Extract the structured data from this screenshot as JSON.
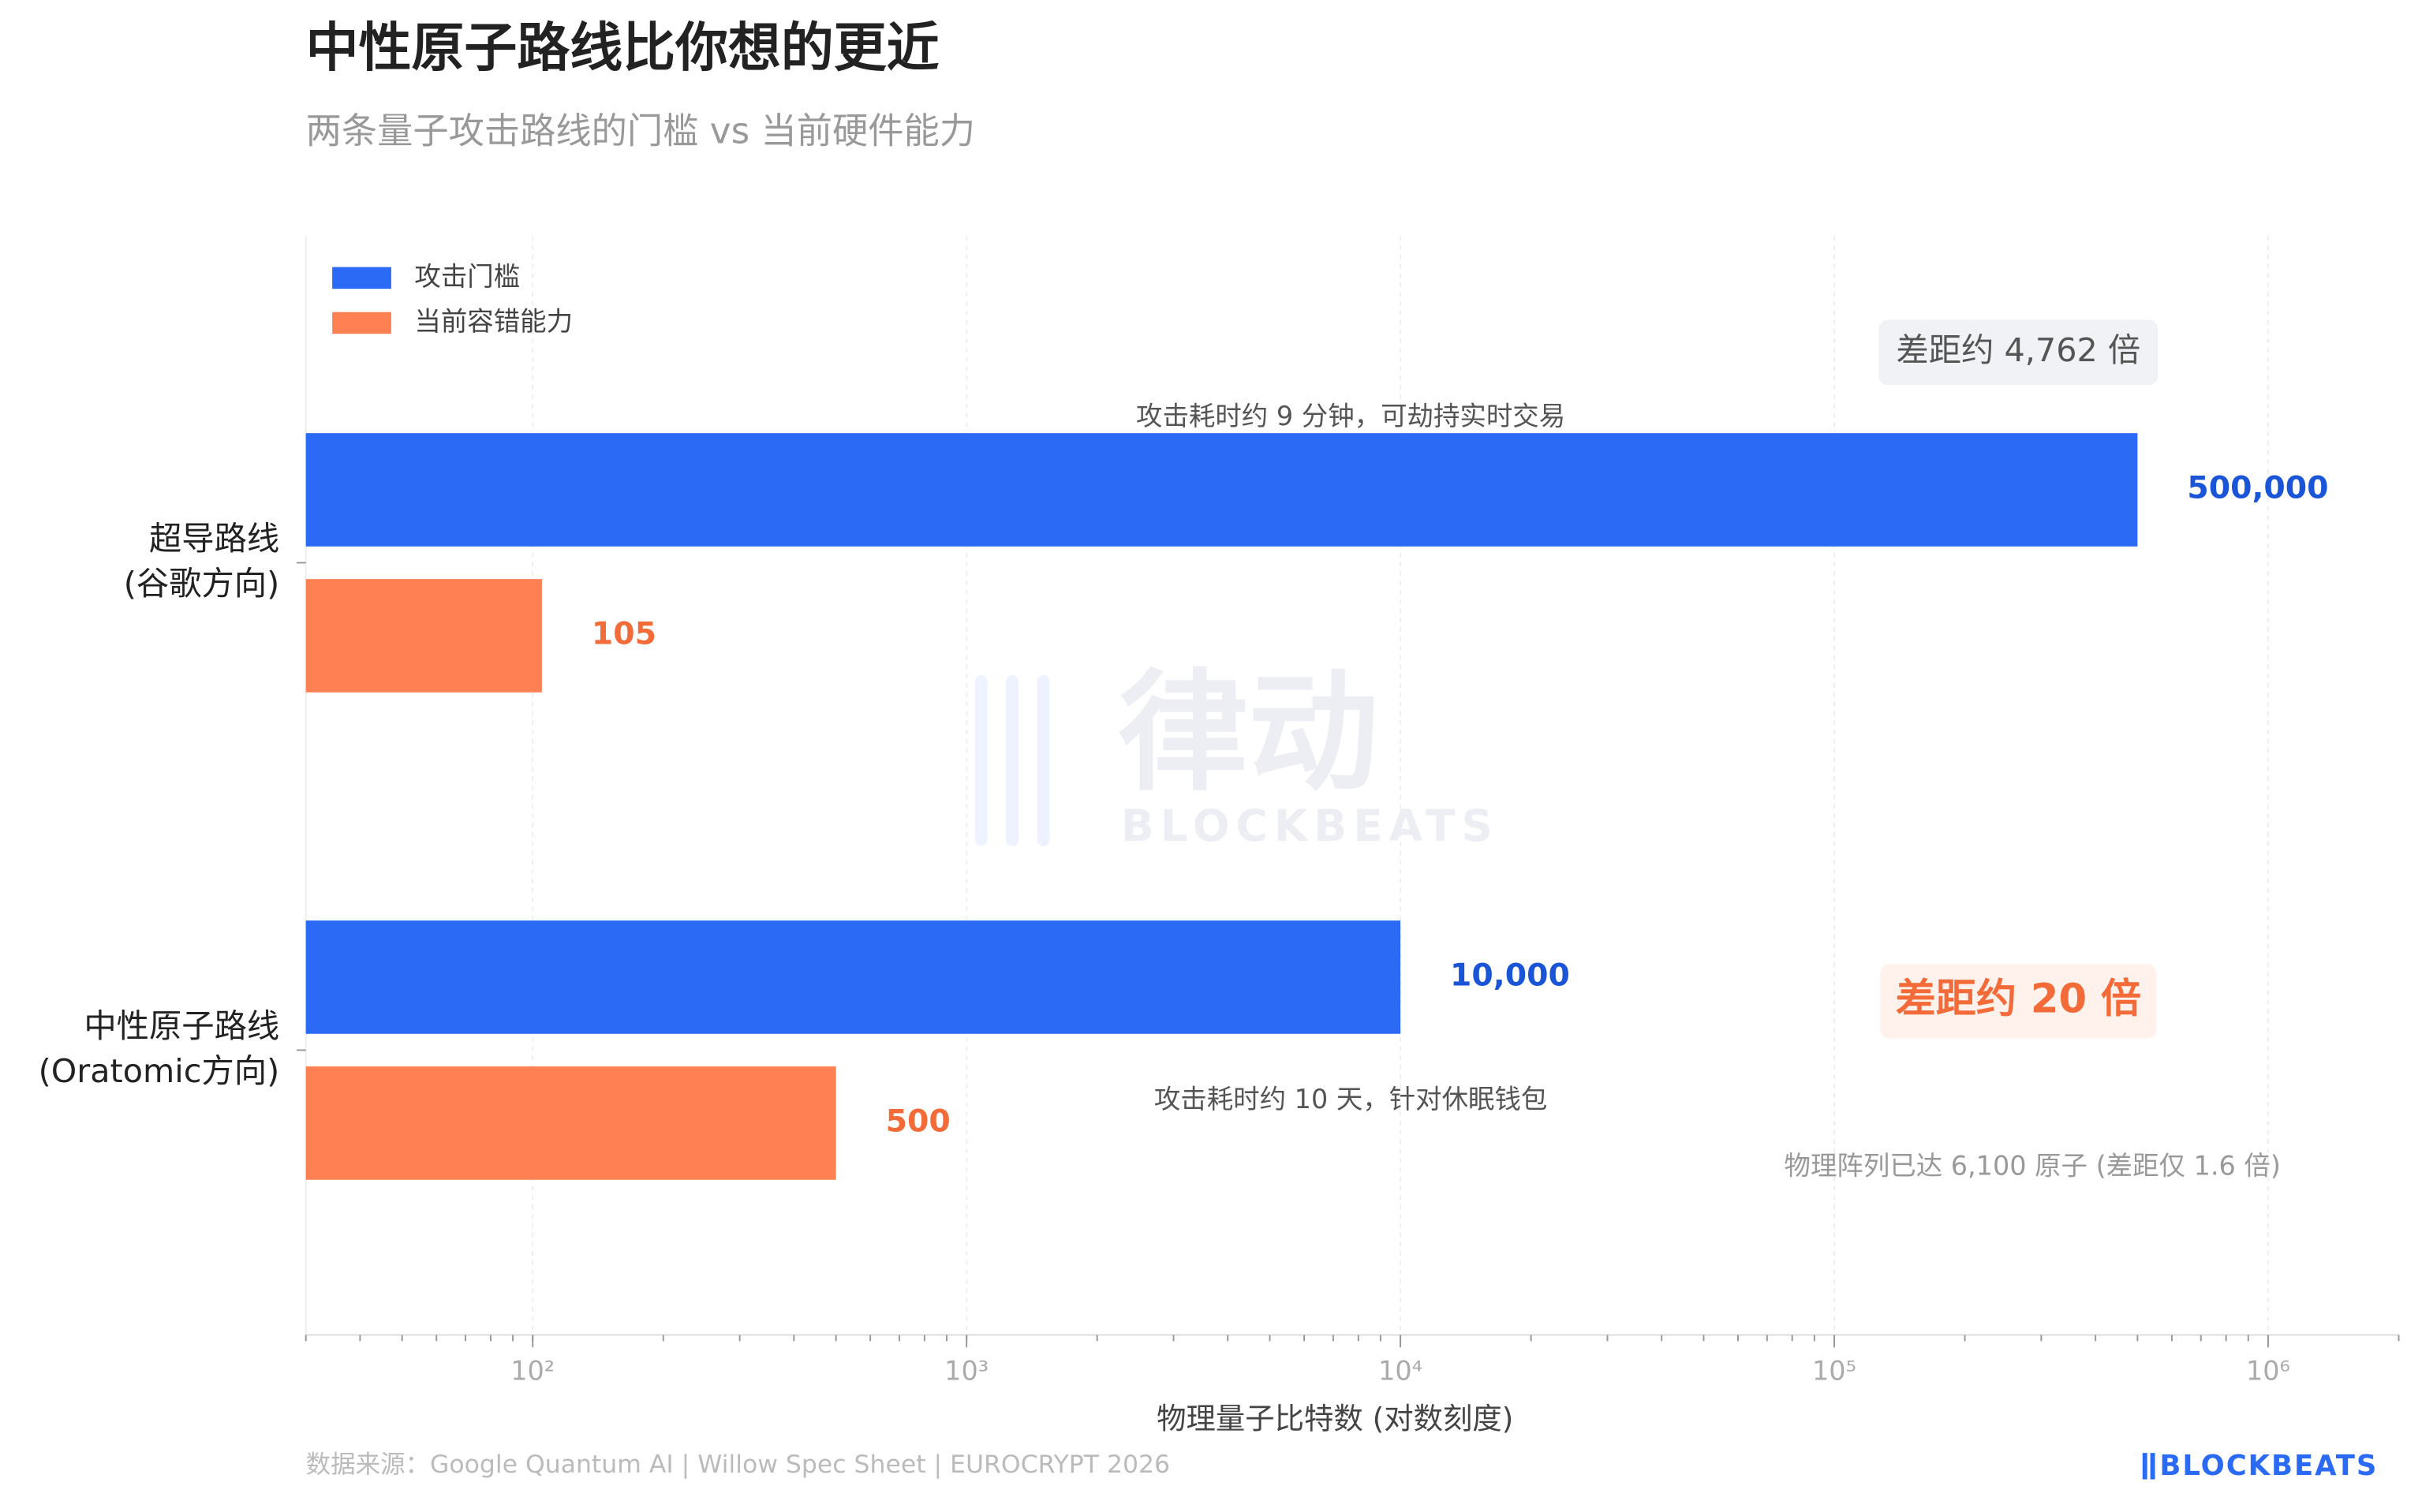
{
  "chart_data": {
    "type": "hbar",
    "title": "中性原子路线比你想的更近",
    "subtitle": "两条量子攻击路线的门槛 vs 当前硬件能力",
    "x_label": "物理量子比特数 (对数刻度)",
    "source": "数据来源：Google Quantum AI | Willow Spec Sheet | EUROCRYPT 2026",
    "brand": "BLOCKBEATS",
    "watermark": [
      "律动",
      "BLOCKBEATS"
    ],
    "categories": [
      [
        "超导路线",
        "(谷歌方向)"
      ],
      [
        "中性原子路线",
        "(Oratomic方向)"
      ]
    ],
    "series": [
      {
        "name": "攻击门槛",
        "color": "#2a6af5",
        "label_color": "#1a55d8",
        "values": [
          500000,
          10000
        ],
        "value_labels": [
          "500,000",
          "10,000"
        ]
      },
      {
        "name": "当前容错能力",
        "color": "#ff8052",
        "label_color": "#f26b38",
        "values": [
          105,
          500
        ],
        "value_labels": [
          "105",
          "500"
        ]
      }
    ],
    "x_scale": "log",
    "xlim": [
      30,
      2000000
    ],
    "xticks": [
      {
        "value": 100,
        "label": "10²"
      },
      {
        "value": 1000,
        "label": "10³"
      },
      {
        "value": 10000,
        "label": "10⁴"
      },
      {
        "value": 100000,
        "label": "10⁵"
      },
      {
        "value": 1000000,
        "label": "10⁶"
      }
    ],
    "grid": true,
    "legend": "upper left",
    "annotations": [
      "差距约 4,762 倍",
      "攻击耗时约 9 分钟，可劫持实时交易",
      "差距约 20 倍",
      "攻击耗时约 10 天，针对休眠钱包",
      "物理阵列已达 6,100 原子 (差距仅 1.6 倍)"
    ]
  }
}
